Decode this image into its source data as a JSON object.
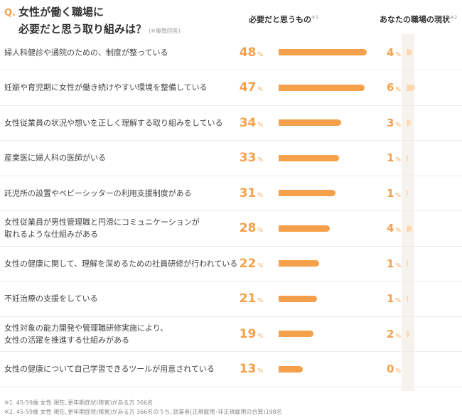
{
  "title": {
    "q": "Q.",
    "line1": "女性が働く職場に",
    "line2": "必要だと思う取り組みは？",
    "sub": "(※複数回答)"
  },
  "headers": {
    "need": "必要だと思うもの",
    "need_note": "※1",
    "current": "あなたの職場の現状",
    "current_note": "※2"
  },
  "unit": "%",
  "colors": {
    "need_bar": "#f5a04a",
    "current_bar": "#fbd9b5",
    "accent": "#f5a04a"
  },
  "chart_data": {
    "type": "bar",
    "categories": [
      [
        "婦人科健診や通院のための、制度が整っている"
      ],
      [
        "妊娠や育児期に女性が働き続けやすい環境を整備している"
      ],
      [
        "女性従業員の状況や想いを正しく理解する取り組みをしている"
      ],
      [
        "産業医に婦人科の医師がいる"
      ],
      [
        "託児所の設置やベビーシッターの利用支援制度がある"
      ],
      [
        "女性従業員が男性管理職と円滑にコミュニケーションが",
        "取れるような仕組みがある"
      ],
      [
        "女性の健康に関して、理解を深めるための社員研修が行われている"
      ],
      [
        "不妊治療の支援をしている"
      ],
      [
        "女性対象の能力開発や管理職研修実施により、",
        "女性の活躍を推進する仕組みがある"
      ],
      [
        "女性の健康について自己学習できるツールが用意されている"
      ]
    ],
    "series": [
      {
        "name": "必要だと思うもの",
        "values": [
          48,
          47,
          34,
          33,
          31,
          28,
          22,
          21,
          19,
          13
        ]
      },
      {
        "name": "あなたの職場の現状",
        "values": [
          4,
          6,
          3,
          1,
          1,
          4,
          1,
          1,
          2,
          0
        ]
      }
    ],
    "xlim": [
      0,
      48
    ]
  },
  "footnotes": [
    "※1. 45-59歳 女性 現在､更年期症状(障害)がある方 366名",
    "※2. 45-59歳 女性 現在､更年期症状(障害)がある方 366名のうち､就業者(正規雇用･非正規雇用の合算)198名"
  ]
}
